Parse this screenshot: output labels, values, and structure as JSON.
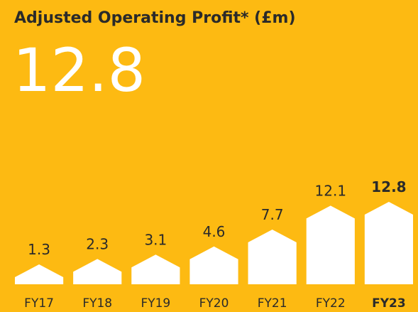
{
  "chart_data": {
    "type": "bar",
    "title": "Adjusted Operating Profit* (£m)",
    "categories": [
      "FY17",
      "FY18",
      "FY19",
      "FY20",
      "FY21",
      "FY22",
      "FY23"
    ],
    "values": [
      1.3,
      2.3,
      3.1,
      4.6,
      7.7,
      12.1,
      12.8
    ],
    "color": "#ffffff"
  }
}
